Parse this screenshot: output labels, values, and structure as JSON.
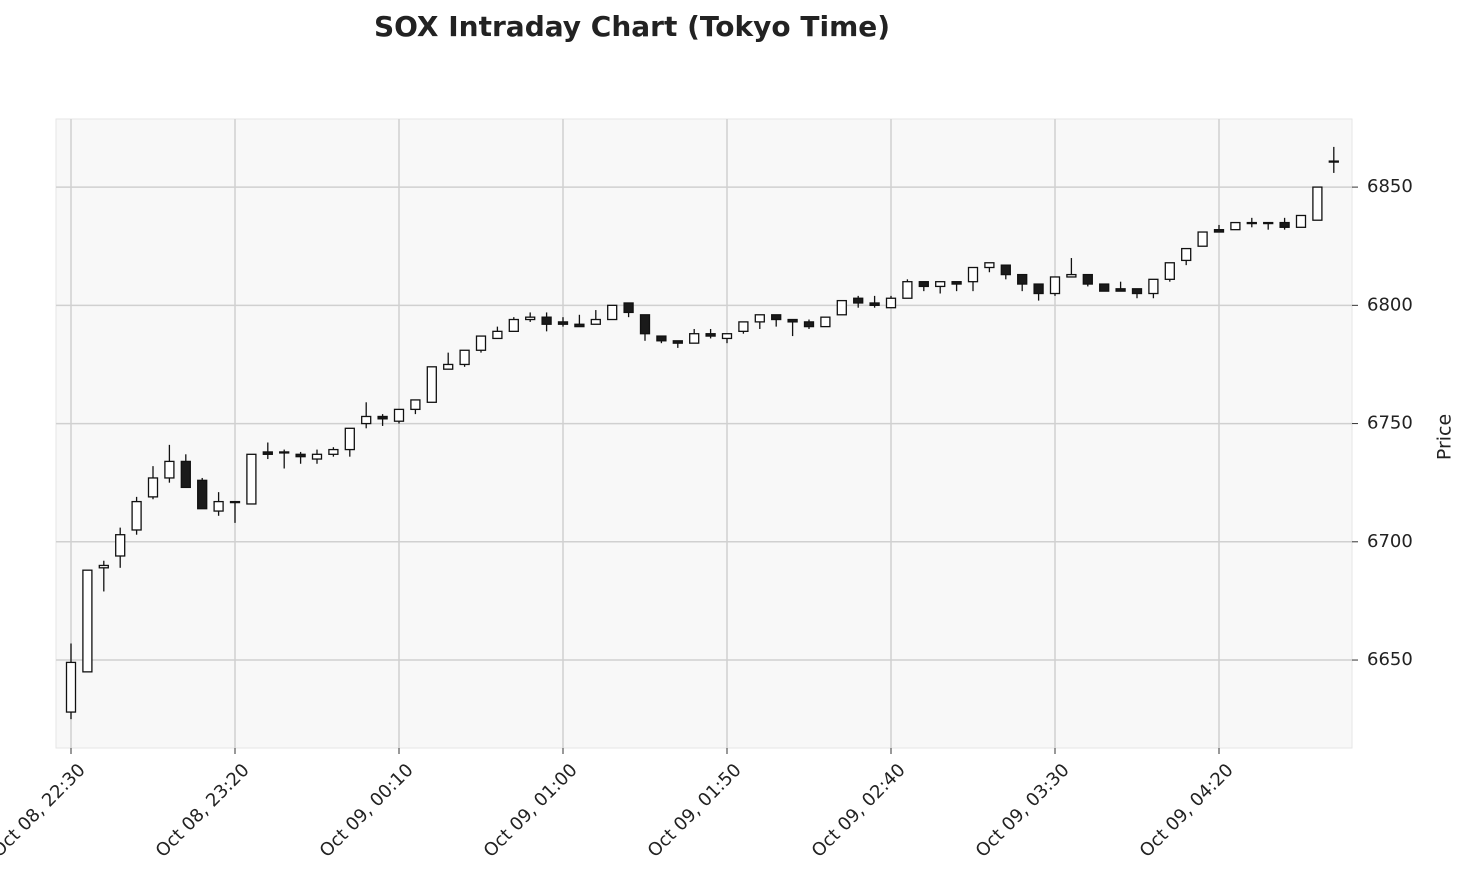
{
  "chart_data": {
    "type": "candlestick",
    "title": "SOX Intraday Chart (Tokyo Time)",
    "y_label": "Price",
    "categories": [
      "Oct 08, 22:30",
      null,
      null,
      null,
      null,
      null,
      null,
      null,
      null,
      null,
      "Oct 08, 23:20",
      null,
      null,
      null,
      null,
      null,
      null,
      null,
      null,
      null,
      "Oct 09, 00:10",
      null,
      null,
      null,
      null,
      null,
      null,
      null,
      null,
      null,
      "Oct 09, 01:00",
      null,
      null,
      null,
      null,
      null,
      null,
      null,
      null,
      null,
      "Oct 09, 01:50",
      null,
      null,
      null,
      null,
      null,
      null,
      null,
      null,
      null,
      "Oct 09, 02:40",
      null,
      null,
      null,
      null,
      null,
      null,
      null,
      null,
      null,
      "Oct 09, 03:30",
      null,
      null,
      null,
      null,
      null,
      null,
      null,
      null,
      null,
      "Oct 09, 04:20",
      null,
      null,
      null,
      null,
      null,
      null,
      null
    ],
    "open": [
      6628,
      6645,
      6689,
      6694,
      6705,
      6719,
      6727,
      6734,
      6726,
      6713,
      6717,
      6716,
      6738,
      6738,
      6737,
      6735,
      6737,
      6739,
      6750,
      6753,
      6751,
      6756,
      6759,
      6773,
      6775,
      6781,
      6786,
      6789,
      6794,
      6795,
      6793,
      6792,
      6792,
      6794,
      6801,
      6796,
      6787,
      6785,
      6784,
      6788,
      6786,
      6789,
      6793,
      6796,
      6794,
      6793,
      6791,
      6796,
      6803,
      6801,
      6799,
      6803,
      6810,
      6808,
      6810,
      6810,
      6816,
      6817,
      6813,
      6809,
      6805,
      6812,
      6813,
      6809,
      6807,
      6807,
      6805,
      6811,
      6819,
      6825,
      6832,
      6832,
      6835,
      6835,
      6835,
      6833,
      6836,
      6861
    ],
    "high": [
      6657,
      6688,
      6692,
      6706,
      6719,
      6732,
      6741,
      6737,
      6727,
      6721,
      6717,
      6737,
      6742,
      6739,
      6738,
      6739,
      6740,
      6748,
      6759,
      6754,
      6756,
      6760,
      6774,
      6780,
      6781,
      6787,
      6791,
      6795,
      6797,
      6797,
      6795,
      6796,
      6798,
      6800,
      6801,
      6796,
      6787,
      6785,
      6790,
      6790,
      6788,
      6793,
      6796,
      6796,
      6794,
      6794,
      6795,
      6802,
      6804,
      6804,
      6804,
      6811,
      6810,
      6810,
      6810,
      6816,
      6818,
      6817,
      6813,
      6809,
      6812,
      6820,
      6813,
      6809,
      6810,
      6807,
      6811,
      6818,
      6824,
      6831,
      6834,
      6835,
      6837,
      6835,
      6837,
      6838,
      6850,
      6867
    ],
    "low": [
      6625,
      6645,
      6679,
      6689,
      6703,
      6718,
      6725,
      6723,
      6714,
      6711,
      6708,
      6716,
      6735,
      6731,
      6733,
      6733,
      6736,
      6736,
      6748,
      6749,
      6750,
      6754,
      6759,
      6773,
      6774,
      6780,
      6786,
      6789,
      6793,
      6789,
      6791,
      6791,
      6792,
      6794,
      6795,
      6785,
      6784,
      6782,
      6784,
      6786,
      6784,
      6788,
      6790,
      6791,
      6787,
      6790,
      6791,
      6796,
      6799,
      6799,
      6799,
      6803,
      6806,
      6805,
      6806,
      6806,
      6814,
      6811,
      6806,
      6802,
      6804,
      6812,
      6808,
      6806,
      6806,
      6803,
      6803,
      6810,
      6817,
      6825,
      6831,
      6832,
      6833,
      6832,
      6832,
      6833,
      6836,
      6856
    ],
    "close": [
      6649,
      6688,
      6690,
      6703,
      6717,
      6727,
      6734,
      6723,
      6714,
      6717,
      6717,
      6737,
      6737,
      6738,
      6736,
      6737,
      6739,
      6748,
      6753,
      6752,
      6756,
      6760,
      6774,
      6775,
      6781,
      6787,
      6789,
      6794,
      6795,
      6792,
      6792,
      6791,
      6794,
      6800,
      6797,
      6788,
      6785,
      6784,
      6788,
      6787,
      6788,
      6793,
      6796,
      6794,
      6793,
      6791,
      6795,
      6802,
      6801,
      6800,
      6803,
      6810,
      6808,
      6810,
      6809,
      6816,
      6818,
      6813,
      6809,
      6805,
      6812,
      6813,
      6809,
      6806,
      6806,
      6805,
      6811,
      6818,
      6824,
      6831,
      6831,
      6835,
      6835,
      6835,
      6833,
      6838,
      6850,
      6861
    ],
    "up_color": "#ffffff",
    "down_color": "#1a1a1a",
    "edge_color": "#111111",
    "ylim": [
      6612.8,
      6878.8
    ],
    "yticks": [
      6650,
      6700,
      6750,
      6800,
      6850
    ],
    "grid": true
  }
}
